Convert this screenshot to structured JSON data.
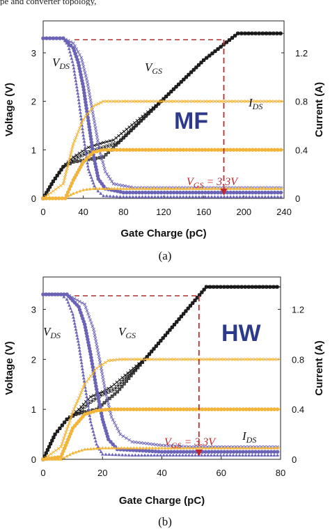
{
  "page": {
    "top_text": "pe and converter topology,"
  },
  "chart_data": [
    {
      "type": "line",
      "panel_caption": "(a)",
      "badge": "MF",
      "xlabel": "Gate Charge (pC)",
      "ylabel_left": "Voltage (V)",
      "ylabel_right": "Current (A)",
      "xlim": [
        0,
        240
      ],
      "ylim_left": [
        0,
        3.3
      ],
      "ylim_right": [
        0,
        1.32
      ],
      "x_ticks": [
        "0",
        "40",
        "80",
        "120",
        "160",
        "200",
        "240"
      ],
      "y_left_ticks": [
        "0",
        "1",
        "2",
        "3"
      ],
      "y_right_ticks": [
        "0",
        "0.4",
        "0.8",
        "1.2"
      ],
      "labels": {
        "vds": "V",
        "vds_sub": "DS",
        "vgs": "V",
        "vgs_sub": "GS",
        "ids": "I",
        "ids_sub": "DS"
      },
      "vgs_annotation": {
        "text_main": "V",
        "text_sub": "GS",
        "text_rest": " = 3.3V",
        "at_x": 180
      },
      "reference_level": 3.3,
      "colors": {
        "vgs": "#111111",
        "vds": "#6b63b5",
        "ids": "#f2b53a",
        "annotation": "#c0282d",
        "badge": "#2d3a8c"
      },
      "series": [
        {
          "group": "vgs",
          "marker": "square",
          "x": [
            0,
            10,
            20,
            30,
            45,
            60,
            80,
            120,
            160,
            194,
            240
          ],
          "y": [
            0,
            0.35,
            0.65,
            0.75,
            0.8,
            0.85,
            1.25,
            2.05,
            2.85,
            3.4,
            3.4
          ]
        },
        {
          "group": "vgs",
          "marker": "circle",
          "x": [
            0,
            10,
            20,
            30,
            45,
            60,
            75,
            120,
            160,
            194,
            240
          ],
          "y": [
            0,
            0.35,
            0.65,
            0.8,
            0.95,
            1.05,
            1.15,
            2.05,
            2.85,
            3.4,
            3.4
          ]
        },
        {
          "group": "vgs",
          "marker": "cross",
          "x": [
            0,
            10,
            20,
            30,
            45,
            60,
            70,
            120,
            160,
            194,
            240
          ],
          "y": [
            0,
            0.35,
            0.65,
            0.85,
            1.05,
            1.15,
            1.2,
            2.05,
            2.85,
            3.4,
            3.4
          ]
        },
        {
          "group": "vds",
          "marker": "triangle",
          "x": [
            0,
            20,
            25,
            30,
            35,
            40,
            45,
            52,
            60,
            80,
            240
          ],
          "y": [
            3.3,
            3.3,
            3.15,
            2.75,
            2.1,
            1.3,
            0.6,
            0.2,
            0.05,
            0.03,
            0.03
          ]
        },
        {
          "group": "vds",
          "marker": "circle",
          "x": [
            0,
            20,
            30,
            35,
            40,
            45,
            50,
            55,
            62,
            80,
            240
          ],
          "y": [
            3.3,
            3.3,
            3.1,
            2.8,
            2.3,
            1.6,
            0.9,
            0.4,
            0.2,
            0.12,
            0.12
          ]
        },
        {
          "group": "vds",
          "marker": "cross",
          "x": [
            0,
            20,
            30,
            38,
            44,
            50,
            56,
            62,
            70,
            90,
            240
          ],
          "y": [
            3.3,
            3.3,
            3.2,
            2.9,
            2.4,
            1.7,
            1.0,
            0.55,
            0.3,
            0.22,
            0.22
          ]
        },
        {
          "group": "ids",
          "marker": "triangle",
          "axis": "right",
          "x": [
            0,
            20,
            30,
            40,
            50,
            80,
            240
          ],
          "y": [
            0,
            0,
            0.04,
            0.07,
            0.08,
            0.08,
            0.08
          ]
        },
        {
          "group": "ids",
          "marker": "circle",
          "axis": "right",
          "x": [
            0,
            22,
            30,
            40,
            50,
            60,
            80,
            240
          ],
          "y": [
            0,
            0,
            0.15,
            0.3,
            0.38,
            0.4,
            0.4,
            0.4
          ]
        },
        {
          "group": "ids",
          "marker": "cross",
          "axis": "right",
          "x": [
            0,
            20,
            30,
            40,
            50,
            60,
            80,
            240
          ],
          "y": [
            0,
            0.12,
            0.45,
            0.65,
            0.76,
            0.8,
            0.8,
            0.8
          ]
        }
      ]
    },
    {
      "type": "line",
      "panel_caption": "(b)",
      "badge": "HW",
      "xlabel": "Gate Charge (pC)",
      "ylabel_left": "Voltage (V)",
      "ylabel_right": "Current (A)",
      "xlim": [
        0,
        80
      ],
      "ylim_left": [
        0,
        3.3
      ],
      "ylim_right": [
        0,
        1.32
      ],
      "x_ticks": [
        "0",
        "20",
        "40",
        "60",
        "80"
      ],
      "y_left_ticks": [
        "0",
        "1",
        "2",
        "3"
      ],
      "y_right_ticks": [
        "0",
        "0.4",
        "0.8",
        "1.2"
      ],
      "labels": {
        "vds": "V",
        "vds_sub": "DS",
        "vgs": "V",
        "vgs_sub": "GS",
        "ids": "I",
        "ids_sub": "DS"
      },
      "vgs_annotation": {
        "text_main": "V",
        "text_sub": "GS",
        "text_rest": " = 3.3V",
        "at_x": 52.5
      },
      "reference_level": 3.3,
      "colors": {
        "vgs": "#111111",
        "vds": "#6b63b5",
        "ids": "#f2b53a",
        "annotation": "#c0282d",
        "badge": "#2d3a8c"
      },
      "series": [
        {
          "group": "vgs",
          "marker": "square",
          "x": [
            0,
            4,
            8,
            11,
            14,
            18,
            25,
            35,
            45,
            55,
            80
          ],
          "y": [
            0,
            0.5,
            0.8,
            0.9,
            0.95,
            1.0,
            1.35,
            2.05,
            2.75,
            3.45,
            3.45
          ]
        },
        {
          "group": "vgs",
          "marker": "circle",
          "x": [
            0,
            4,
            8,
            12,
            16,
            20,
            24,
            35,
            45,
            55,
            80
          ],
          "y": [
            0,
            0.5,
            0.8,
            0.95,
            1.15,
            1.3,
            1.4,
            2.05,
            2.75,
            3.45,
            3.45
          ]
        },
        {
          "group": "vgs",
          "marker": "cross",
          "x": [
            0,
            4,
            8,
            12,
            16,
            20,
            23,
            35,
            45,
            55,
            80
          ],
          "y": [
            0,
            0.5,
            0.8,
            1.0,
            1.25,
            1.35,
            1.45,
            2.05,
            2.75,
            3.45,
            3.45
          ]
        },
        {
          "group": "vds",
          "marker": "triangle",
          "x": [
            0,
            6,
            8,
            10,
            12,
            14,
            16,
            18,
            20,
            30,
            80
          ],
          "y": [
            3.3,
            3.3,
            3.2,
            2.9,
            2.3,
            1.5,
            0.75,
            0.3,
            0.1,
            0.08,
            0.08
          ]
        },
        {
          "group": "vds",
          "marker": "circle",
          "x": [
            0,
            8,
            12,
            14,
            16,
            18,
            20,
            22,
            25,
            40,
            80
          ],
          "y": [
            3.3,
            3.3,
            3.05,
            2.7,
            2.1,
            1.4,
            0.8,
            0.4,
            0.2,
            0.15,
            0.15
          ]
        },
        {
          "group": "vds",
          "marker": "cross",
          "x": [
            0,
            8,
            14,
            17,
            19,
            21,
            23,
            26,
            30,
            40,
            50,
            80
          ],
          "y": [
            3.3,
            3.3,
            3.1,
            2.6,
            2.0,
            1.35,
            0.85,
            0.5,
            0.35,
            0.28,
            0.25,
            0.25
          ]
        },
        {
          "group": "ids",
          "marker": "triangle",
          "axis": "right",
          "x": [
            0,
            6,
            10,
            14,
            20,
            80
          ],
          "y": [
            0,
            0,
            0.05,
            0.08,
            0.09,
            0.09
          ]
        },
        {
          "group": "ids",
          "marker": "circle",
          "axis": "right",
          "x": [
            0,
            6,
            10,
            14,
            18,
            22,
            80
          ],
          "y": [
            0,
            0.02,
            0.25,
            0.36,
            0.39,
            0.4,
            0.4
          ]
        },
        {
          "group": "ids",
          "marker": "cross",
          "axis": "right",
          "x": [
            0,
            6,
            10,
            14,
            18,
            22,
            26,
            80
          ],
          "y": [
            0,
            0.1,
            0.38,
            0.6,
            0.73,
            0.79,
            0.8,
            0.8
          ]
        }
      ]
    }
  ]
}
